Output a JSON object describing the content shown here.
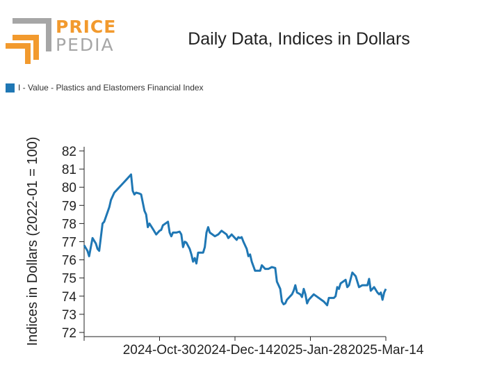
{
  "logo": {
    "line1": "PRICE",
    "line2": "PEDIA"
  },
  "colors": {
    "series": "#1f77b4",
    "logo_orange": "#f29a2e",
    "logo_grey": "#a6a6a6"
  },
  "chart_data": {
    "type": "line",
    "title": "Daily Data, Indices in Dollars",
    "ylabel": "Indices in Dollars (2022-01 = 100)",
    "xlabel": "",
    "ylim": [
      72,
      82
    ],
    "yticks": [
      72,
      73,
      74,
      75,
      76,
      77,
      78,
      79,
      80,
      81,
      82
    ],
    "xlim": [
      "2024-09-15",
      "2025-03-14"
    ],
    "xticks": [
      "2024-10-30",
      "2024-12-14",
      "2025-01-28",
      "2025-03-14"
    ],
    "xtick_labels": [
      "2024-Oct-30",
      "2024-Dec-14",
      "2025-Jan-28",
      "2025-Mar-14"
    ],
    "grid": false,
    "legend": "top-left",
    "series": [
      {
        "name": "I - Value - Plastics and Elastomers Financial Index",
        "points": [
          [
            "2024-09-15",
            76.8
          ],
          [
            "2024-09-17",
            76.5
          ],
          [
            "2024-09-18",
            76.2
          ],
          [
            "2024-09-20",
            77.2
          ],
          [
            "2024-09-22",
            76.9
          ],
          [
            "2024-09-23",
            76.6
          ],
          [
            "2024-09-24",
            76.5
          ],
          [
            "2024-09-26",
            78.0
          ],
          [
            "2024-09-27",
            78.1
          ],
          [
            "2024-09-30",
            78.9
          ],
          [
            "2024-10-01",
            79.3
          ],
          [
            "2024-10-03",
            79.7
          ],
          [
            "2024-10-05",
            79.9
          ],
          [
            "2024-10-08",
            80.2
          ],
          [
            "2024-10-10",
            80.4
          ],
          [
            "2024-10-13",
            80.7
          ],
          [
            "2024-10-14",
            79.8
          ],
          [
            "2024-10-15",
            79.6
          ],
          [
            "2024-10-16",
            79.7
          ],
          [
            "2024-10-18",
            79.65
          ],
          [
            "2024-10-19",
            79.6
          ],
          [
            "2024-10-21",
            78.7
          ],
          [
            "2024-10-22",
            78.5
          ],
          [
            "2024-10-23",
            77.8
          ],
          [
            "2024-10-24",
            78.0
          ],
          [
            "2024-10-26",
            77.7
          ],
          [
            "2024-10-28",
            77.4
          ],
          [
            "2024-10-30",
            77.6
          ],
          [
            "2024-10-31",
            77.65
          ],
          [
            "2024-11-01",
            77.9
          ],
          [
            "2024-11-04",
            78.1
          ],
          [
            "2024-11-05",
            77.5
          ],
          [
            "2024-11-06",
            77.3
          ],
          [
            "2024-11-07",
            77.5
          ],
          [
            "2024-11-09",
            77.5
          ],
          [
            "2024-11-11",
            77.55
          ],
          [
            "2024-11-12",
            77.4
          ],
          [
            "2024-11-13",
            76.7
          ],
          [
            "2024-11-14",
            77.0
          ],
          [
            "2024-11-15",
            76.95
          ],
          [
            "2024-11-17",
            76.6
          ],
          [
            "2024-11-18",
            76.3
          ],
          [
            "2024-11-19",
            75.9
          ],
          [
            "2024-11-20",
            76.1
          ],
          [
            "2024-11-21",
            75.8
          ],
          [
            "2024-11-22",
            76.4
          ],
          [
            "2024-11-25",
            76.4
          ],
          [
            "2024-11-26",
            76.7
          ],
          [
            "2024-11-27",
            77.5
          ],
          [
            "2024-11-28",
            77.8
          ],
          [
            "2024-11-29",
            77.5
          ],
          [
            "2024-12-02",
            77.3
          ],
          [
            "2024-12-04",
            77.4
          ],
          [
            "2024-12-06",
            77.6
          ],
          [
            "2024-12-09",
            77.4
          ],
          [
            "2024-12-10",
            77.2
          ],
          [
            "2024-12-12",
            77.4
          ],
          [
            "2024-12-14",
            77.2
          ],
          [
            "2024-12-15",
            77.1
          ],
          [
            "2024-12-16",
            77.25
          ],
          [
            "2024-12-17",
            77.2
          ],
          [
            "2024-12-18",
            77.25
          ],
          [
            "2024-12-19",
            77.0
          ],
          [
            "2024-12-21",
            76.6
          ],
          [
            "2024-12-22",
            76.2
          ],
          [
            "2024-12-23",
            76.3
          ],
          [
            "2024-12-24",
            75.9
          ],
          [
            "2024-12-26",
            75.4
          ],
          [
            "2024-12-29",
            75.4
          ],
          [
            "2024-12-30",
            75.7
          ],
          [
            "2025-01-01",
            75.5
          ],
          [
            "2025-01-03",
            75.5
          ],
          [
            "2025-01-05",
            75.6
          ],
          [
            "2025-01-07",
            75.55
          ],
          [
            "2025-01-08",
            74.8
          ],
          [
            "2025-01-10",
            74.4
          ],
          [
            "2025-01-11",
            73.7
          ],
          [
            "2025-01-12",
            73.55
          ],
          [
            "2025-01-13",
            73.6
          ],
          [
            "2025-01-14",
            73.8
          ],
          [
            "2025-01-17",
            74.1
          ],
          [
            "2025-01-18",
            74.3
          ],
          [
            "2025-01-19",
            74.6
          ],
          [
            "2025-01-20",
            74.2
          ],
          [
            "2025-01-22",
            74.1
          ],
          [
            "2025-01-23",
            73.95
          ],
          [
            "2025-01-24",
            74.4
          ],
          [
            "2025-01-25",
            74.1
          ],
          [
            "2025-01-26",
            73.6
          ],
          [
            "2025-01-27",
            73.8
          ],
          [
            "2025-01-30",
            74.1
          ],
          [
            "2025-02-05",
            73.7
          ],
          [
            "2025-02-07",
            73.5
          ],
          [
            "2025-02-08",
            73.9
          ],
          [
            "2025-02-11",
            73.9
          ],
          [
            "2025-02-12",
            74.0
          ],
          [
            "2025-02-13",
            74.5
          ],
          [
            "2025-02-14",
            74.4
          ],
          [
            "2025-02-15",
            74.7
          ],
          [
            "2025-02-18",
            74.9
          ],
          [
            "2025-02-19",
            74.5
          ],
          [
            "2025-02-20",
            74.6
          ],
          [
            "2025-02-22",
            75.3
          ],
          [
            "2025-02-24",
            75.1
          ],
          [
            "2025-02-26",
            74.5
          ],
          [
            "2025-02-28",
            74.6
          ],
          [
            "2025-03-03",
            74.6
          ],
          [
            "2025-03-04",
            74.95
          ],
          [
            "2025-03-05",
            74.3
          ],
          [
            "2025-03-07",
            74.5
          ],
          [
            "2025-03-09",
            74.2
          ],
          [
            "2025-03-10",
            74.1
          ],
          [
            "2025-03-11",
            74.2
          ],
          [
            "2025-03-12",
            73.8
          ],
          [
            "2025-03-13",
            74.2
          ],
          [
            "2025-03-14",
            74.4
          ]
        ]
      }
    ]
  }
}
